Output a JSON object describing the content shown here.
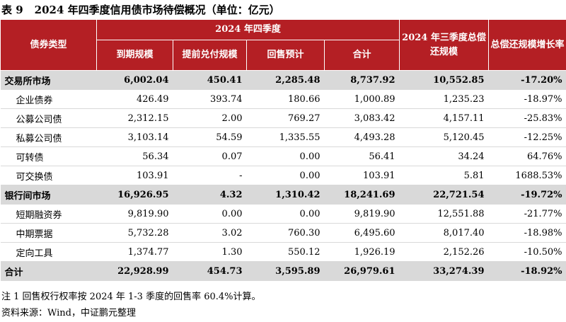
{
  "caption": {
    "number": "表 9",
    "title": "2024 年四季度信用债市场待偿概况（单位：亿元）"
  },
  "header": {
    "col_type": "债券类型",
    "group_q4": "2024 年四季度",
    "col_maturity": "到期规模",
    "col_early": "提前兑付规模",
    "col_putback": "回售预计",
    "col_total": "合计",
    "col_q3": "2024 年三季度总偿还规模",
    "col_growth": "总偿还规模增长率"
  },
  "rows": [
    {
      "type": "grp",
      "name": "交易所市场",
      "maturity": "6,002.04",
      "early": "450.41",
      "putback": "2,285.48",
      "total": "8,737.92",
      "q3": "10,552.85",
      "growth": "-17.20%"
    },
    {
      "type": "sub",
      "name": "企业债券",
      "maturity": "426.49",
      "early": "393.74",
      "putback": "180.66",
      "total": "1,000.89",
      "q3": "1,235.23",
      "growth": "-18.97%"
    },
    {
      "type": "sub",
      "name": "公募公司债",
      "maturity": "2,312.15",
      "early": "2.00",
      "putback": "769.27",
      "total": "3,083.42",
      "q3": "4,157.11",
      "growth": "-25.83%"
    },
    {
      "type": "sub",
      "name": "私募公司债",
      "maturity": "3,103.14",
      "early": "54.59",
      "putback": "1,335.55",
      "total": "4,493.28",
      "q3": "5,120.45",
      "growth": "-12.25%"
    },
    {
      "type": "sub",
      "name": "可转债",
      "maturity": "56.34",
      "early": "0.07",
      "putback": "0.00",
      "total": "56.41",
      "q3": "34.24",
      "growth": "64.76%"
    },
    {
      "type": "sub",
      "name": "可交换债",
      "maturity": "103.91",
      "early": "-",
      "putback": "0.00",
      "total": "103.91",
      "q3": "5.81",
      "growth": "1688.53%"
    },
    {
      "type": "grp",
      "name": "银行间市场",
      "maturity": "16,926.95",
      "early": "4.32",
      "putback": "1,310.42",
      "total": "18,241.69",
      "q3": "22,721.54",
      "growth": "-19.72%"
    },
    {
      "type": "sub",
      "name": "短期融资券",
      "maturity": "9,819.90",
      "early": "0.00",
      "putback": "0.00",
      "total": "9,819.90",
      "q3": "12,551.88",
      "growth": "-21.77%"
    },
    {
      "type": "sub",
      "name": "中期票据",
      "maturity": "5,732.28",
      "early": "3.02",
      "putback": "760.30",
      "total": "6,495.60",
      "q3": "8,017.40",
      "growth": "-18.98%"
    },
    {
      "type": "sub",
      "name": "定向工具",
      "maturity": "1,374.77",
      "early": "1.30",
      "putback": "550.12",
      "total": "1,926.19",
      "q3": "2,152.26",
      "growth": "-10.50%"
    },
    {
      "type": "total",
      "name": "合计",
      "maturity": "22,928.99",
      "early": "454.73",
      "putback": "3,595.89",
      "total": "26,979.61",
      "q3": "33,274.39",
      "growth": "-18.92%"
    }
  ],
  "notes": {
    "note1": "注 1 回售权行权率按 2024 年 1-3 季度的回售率 60.4%计算。",
    "source": "资料来源：Wind，中证鹏元整理"
  }
}
